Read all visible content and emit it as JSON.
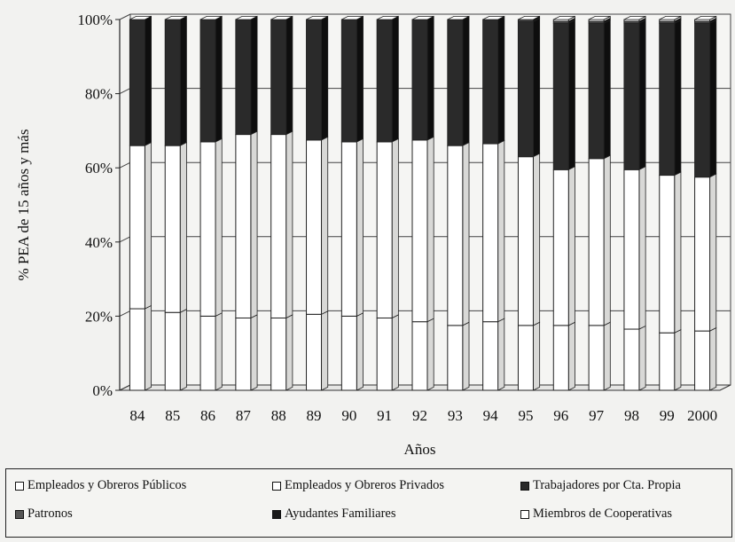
{
  "chart_data": {
    "type": "bar",
    "stacked": true,
    "percent": true,
    "three_d": true,
    "title": "",
    "xlabel": "Años",
    "ylabel": "% PEA de 15 años y más",
    "ylim": [
      0,
      100
    ],
    "yticks": [
      "0%",
      "20%",
      "40%",
      "60%",
      "80%",
      "100%"
    ],
    "grid": true,
    "legend_position": "bottom",
    "categories": [
      "84",
      "85",
      "86",
      "87",
      "88",
      "89",
      "90",
      "91",
      "92",
      "93",
      "94",
      "95",
      "96",
      "97",
      "98",
      "99",
      "2000"
    ],
    "series": [
      {
        "name": "Empleados y Obreros Públicos",
        "color": "#ffffff",
        "values": [
          22,
          21,
          20,
          19.5,
          19.5,
          20.5,
          20,
          19.5,
          18.5,
          17.5,
          18.5,
          17.5,
          17.5,
          17.5,
          16.5,
          15.5,
          16
        ]
      },
      {
        "name": "Empleados y Obreros Privados",
        "color": "#ffffff",
        "values": [
          44,
          45,
          47,
          49.5,
          49.5,
          47,
          47,
          47.5,
          49,
          48.5,
          48,
          45.5,
          42,
          45,
          43,
          42.5,
          41.5
        ]
      },
      {
        "name": "Trabajadores por Cta. Propia",
        "color": "#2a2a2a",
        "values": [
          34,
          34,
          33,
          31,
          31,
          32.5,
          33,
          33,
          32.5,
          34,
          33.5,
          36.5,
          39.5,
          36.5,
          39.5,
          41,
          41.5
        ]
      },
      {
        "name": "Patronos",
        "color": "#555555",
        "values": [
          0,
          0,
          0,
          0,
          0,
          0,
          0,
          0,
          0,
          0,
          0,
          0.5,
          0.5,
          0.5,
          0.5,
          0.5,
          0.5
        ]
      },
      {
        "name": "Ayudantes Familiares",
        "color": "#1a1a1a",
        "values": [
          0,
          0,
          0,
          0,
          0,
          0,
          0,
          0,
          0,
          0,
          0,
          0,
          0,
          0,
          0,
          0,
          0
        ]
      },
      {
        "name": "Miembros de Cooperativas",
        "color": "#ffffff",
        "values": [
          0,
          0,
          0,
          0,
          0,
          0,
          0,
          0,
          0,
          0,
          0,
          0,
          0.5,
          0.5,
          0.5,
          0.5,
          0.5
        ]
      }
    ]
  }
}
